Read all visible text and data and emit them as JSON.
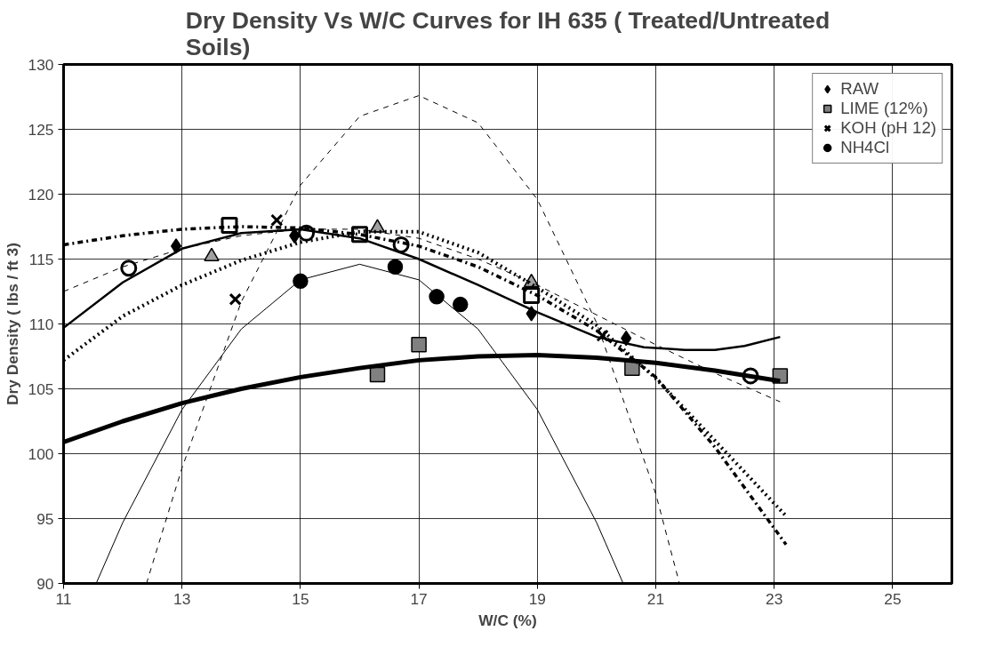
{
  "chart_data": {
    "type": "scatter",
    "title": "Dry Density Vs W/C Curves for IH 635 ( Treated/Untreated Soils)",
    "xlabel": "W/C (%)",
    "ylabel": "Dry Density ( lbs / ft 3)",
    "xlim": [
      11,
      26
    ],
    "xticks": [
      11,
      13,
      15,
      17,
      19,
      21,
      23,
      25
    ],
    "ylim": [
      90,
      130
    ],
    "yticks": [
      90,
      95,
      100,
      105,
      110,
      115,
      120,
      125,
      130
    ],
    "grid": true,
    "legend": "top right",
    "series": [
      {
        "name": "RAW",
        "color": "#000000",
        "marker": "diamond",
        "x": [
          12.9,
          14.9,
          18.9,
          20.5
        ],
        "values": [
          116,
          116.8,
          110.8,
          108.9
        ]
      },
      {
        "name": "LIME (12%)",
        "color": "#808080",
        "marker": "square",
        "x": [
          16.3,
          17.0,
          20.6,
          23.1
        ],
        "values": [
          106.1,
          108.4,
          106.6,
          106.0
        ]
      },
      {
        "color": "#a0a0a0",
        "marker": "triangle",
        "x": [
          13.5,
          16.3,
          18.9
        ],
        "values": [
          115.2,
          117.4,
          113.2
        ]
      },
      {
        "color": "#ffffff",
        "marker": "circle",
        "x": [
          12.1,
          15.1,
          16.7,
          22.6
        ],
        "values": [
          114.3,
          117.0,
          116.1,
          106.0
        ]
      },
      {
        "name": "KOH (pH 12)",
        "color": "#000000",
        "marker": "cross",
        "x": [
          13.9,
          14.6,
          20.1
        ],
        "values": [
          111.9,
          118.0,
          109.1
        ]
      },
      {
        "name": "NH4Cl",
        "color": "#000000",
        "marker": "circle",
        "x": [
          15.0,
          16.6,
          17.3,
          17.7
        ],
        "values": [
          113.3,
          114.4,
          112.1,
          111.5
        ]
      },
      {
        "color": "#ffffff",
        "marker": "square",
        "x": [
          13.8,
          16.0,
          18.9
        ],
        "values": [
          117.6,
          116.9,
          112.2
        ]
      },
      {
        "type": "line",
        "color": "#000000",
        "line_style": "solid",
        "x": [
          11,
          12,
          13,
          14,
          15,
          16,
          17,
          18,
          19,
          20,
          20.8,
          21.5,
          22,
          22.5,
          23.1
        ],
        "values": [
          109.7,
          113.2,
          115.8,
          117.0,
          117.3,
          116.6,
          115.0,
          113.0,
          110.9,
          109.0,
          108.2,
          108.0,
          108.0,
          108.3,
          109.0
        ]
      },
      {
        "type": "line",
        "color": "#000000",
        "line_style": "solid",
        "x": [
          11,
          12,
          13,
          14,
          15,
          16,
          17,
          18,
          19,
          20,
          21,
          22,
          23.1
        ],
        "values": [
          100.9,
          102.5,
          103.9,
          105.0,
          105.9,
          106.6,
          107.2,
          107.5,
          107.6,
          107.4,
          107.0,
          106.4,
          105.6
        ]
      },
      {
        "type": "line",
        "color": "#000000",
        "line_style": "dotted",
        "x": [
          11,
          12,
          13,
          14,
          15,
          16,
          17,
          18,
          19,
          20,
          21,
          22,
          23.2
        ],
        "values": [
          107.2,
          110.6,
          113.0,
          114.9,
          116.3,
          117.1,
          117.1,
          115.5,
          112.8,
          109.9,
          105.8,
          101.0,
          95.2
        ]
      },
      {
        "type": "line",
        "color": "#000000",
        "line_style": "dashed",
        "x": [
          11,
          12,
          13,
          14,
          15,
          16,
          17,
          18,
          19,
          20,
          21,
          22,
          23.1
        ],
        "values": [
          112.5,
          114.4,
          115.8,
          116.8,
          117.3,
          117.3,
          116.6,
          115.0,
          113.0,
          110.7,
          108.4,
          106.2,
          104.0
        ]
      },
      {
        "type": "line",
        "color": "#000000",
        "line_style": "dashed",
        "x": [
          12.4,
          13,
          14,
          15,
          16,
          17,
          18,
          19,
          20,
          21,
          21.4
        ],
        "values": [
          90,
          98.9,
          111.7,
          120.7,
          126.0,
          127.6,
          125.5,
          119.6,
          110.1,
          96.9,
          90
        ]
      },
      {
        "type": "line",
        "color": "#000000",
        "line_style": "solid",
        "x": [
          11.55,
          12,
          13,
          14,
          15,
          16,
          17,
          18,
          19,
          20,
          20.45
        ],
        "values": [
          90,
          94.7,
          103.4,
          109.6,
          113.4,
          114.6,
          113.4,
          109.6,
          103.4,
          94.7,
          90
        ]
      },
      {
        "type": "line",
        "color": "#000000",
        "line_style": "dashdot",
        "x": [
          11,
          12,
          13,
          14,
          15,
          16,
          17,
          18,
          19,
          20,
          21,
          22,
          23.2
        ],
        "values": [
          116.1,
          116.8,
          117.3,
          117.5,
          117.4,
          116.9,
          116.0,
          114.4,
          112.2,
          109.5,
          105.9,
          100.5,
          93.0
        ]
      }
    ]
  }
}
